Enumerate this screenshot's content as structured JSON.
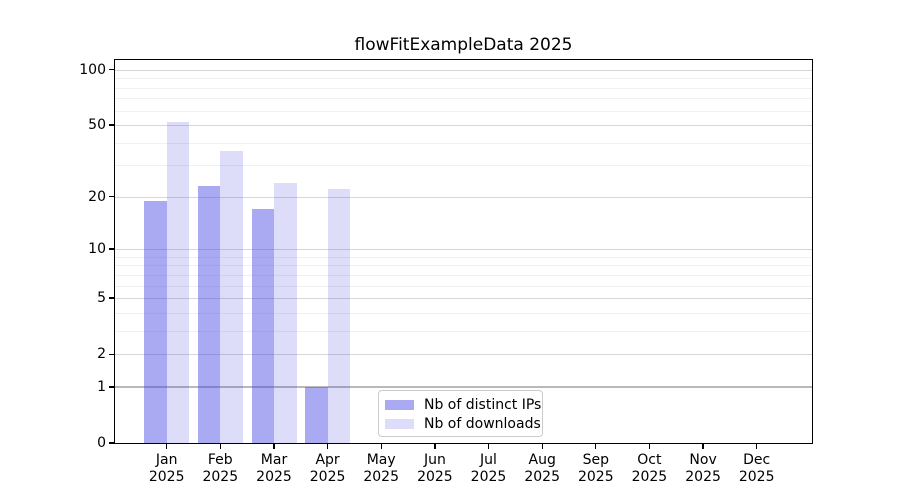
{
  "figure": {
    "background": "#ffffff",
    "text_color": "#000000",
    "spine_color": "#000000",
    "grid_major_color": "#d7d7d7",
    "grid_minor_color": "#f0f0f0",
    "grid_baseline_color": "#b9b9b9"
  },
  "chart_data": {
    "type": "bar",
    "title": "flowFitExampleData 2025",
    "xlabel": "",
    "ylabel": "",
    "y_scale": "log10(1+x)",
    "ylim": [
      0,
      113
    ],
    "grid": "both",
    "legend_position": "lower center",
    "categories": [
      "Jan",
      "Feb",
      "Mar",
      "Apr",
      "May",
      "Jun",
      "Jul",
      "Aug",
      "Sep",
      "Oct",
      "Nov",
      "Dec"
    ],
    "x_year_label": "2025",
    "y_major_ticks": [
      0,
      1,
      2,
      5,
      10,
      20,
      50,
      100
    ],
    "y_minor_ticks": [
      3,
      4,
      6,
      7,
      8,
      9,
      30,
      40,
      60,
      70,
      80,
      90
    ],
    "series": [
      {
        "name": "Nb of distinct IPs",
        "color": "rgba(68,68,227,0.455)",
        "values": [
          19,
          23,
          17,
          1,
          0,
          0,
          0,
          0,
          0,
          0,
          0,
          0
        ]
      },
      {
        "name": "Nb of downloads",
        "color": "rgba(68,68,227,0.18)",
        "values": [
          52,
          36,
          24,
          22,
          0,
          0,
          0,
          0,
          0,
          0,
          0,
          0
        ]
      }
    ]
  }
}
